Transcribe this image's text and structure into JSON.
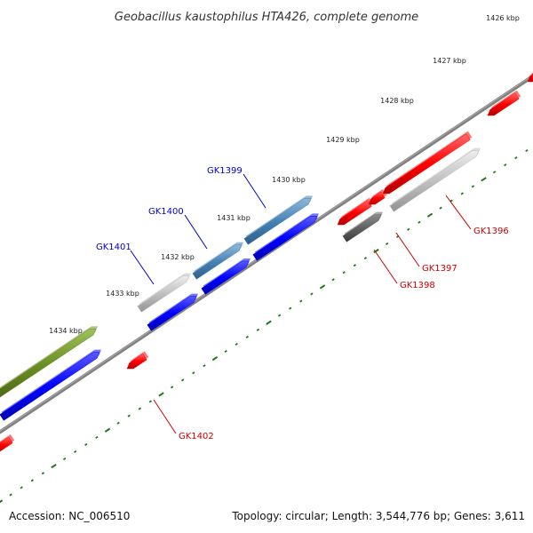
{
  "title": "Geobacillus kaustophilus HTA426, complete genome",
  "footer": {
    "accession": "Accession: NC_006510",
    "summary": "Topology: circular; Length: 3,544,776 bp; Genes: 3,611"
  },
  "scale_labels": [
    "1426 kbp",
    "1427 kbp",
    "1428 kbp",
    "1429 kbp",
    "1430 kbp",
    "1431 kbp",
    "1432 kbp",
    "1433 kbp",
    "1434 kbp"
  ],
  "gene_labels": [
    "GK1396",
    "GK1397",
    "GK1398",
    "GK1399",
    "GK1400",
    "GK1401",
    "GK1402"
  ],
  "colors": {
    "forward_label": "#0000cc",
    "reverse_label": "#cc0000",
    "backbone": "#808080",
    "tick": "#1a7a1a",
    "feature_red": "#ff0000",
    "feature_blue": "#0000ff",
    "feature_steelblue": "#4682b4",
    "feature_lightgray": "#c0c0c0",
    "feature_darkgray": "#606060",
    "feature_olive": "#6b8e23"
  }
}
